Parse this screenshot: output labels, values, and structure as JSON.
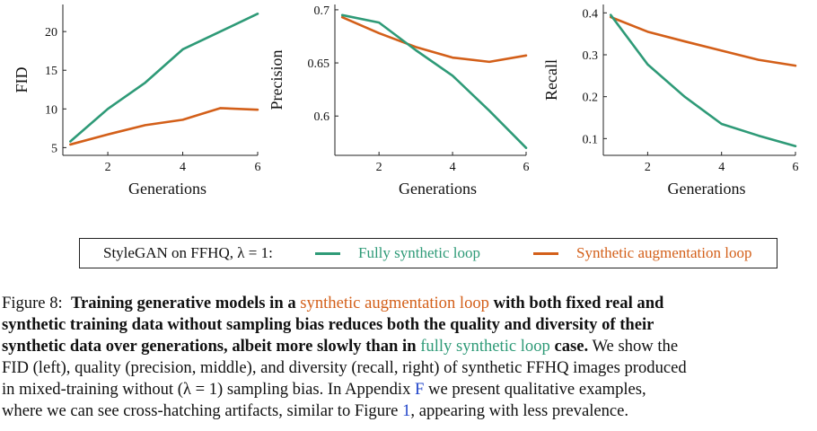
{
  "colors": {
    "fully_synthetic": "#2E9A77",
    "synthetic_augmentation": "#D35F19",
    "ref_link": "#1F43C9"
  },
  "chart_data": [
    {
      "type": "line",
      "xlabel": "Generations",
      "ylabel": "FID",
      "x": [
        1,
        2,
        3,
        4,
        5,
        6
      ],
      "xlim": [
        0.8,
        6
      ],
      "ylim": [
        4,
        23.5
      ],
      "xticks": [
        2,
        4,
        6
      ],
      "yticks": [
        5,
        10,
        15,
        20
      ],
      "xtick_labels": [
        "2",
        "4",
        "6"
      ],
      "ytick_labels": [
        "5",
        "10",
        "15",
        "20"
      ],
      "series": [
        {
          "name": "Fully synthetic loop",
          "color": "#2E9A77",
          "values": [
            5.8,
            10,
            13.4,
            17.7,
            20,
            22.3
          ]
        },
        {
          "name": "Synthetic augmentation loop",
          "color": "#D35F19",
          "values": [
            5.4,
            6.7,
            7.9,
            8.6,
            10.1,
            9.9
          ]
        }
      ]
    },
    {
      "type": "line",
      "xlabel": "Generations",
      "ylabel": "Precision",
      "x": [
        1,
        2,
        3,
        4,
        5,
        6
      ],
      "xlim": [
        0.8,
        6
      ],
      "ylim": [
        0.563,
        0.705
      ],
      "xticks": [
        2,
        4,
        6
      ],
      "yticks": [
        0.6,
        0.65,
        0.7
      ],
      "xtick_labels": [
        "2",
        "4",
        "6"
      ],
      "ytick_labels": [
        "0.6",
        "0.65",
        "0.7"
      ],
      "series": [
        {
          "name": "Fully synthetic loop",
          "color": "#2E9A77",
          "values": [
            0.695,
            0.688,
            0.662,
            0.638,
            0.605,
            0.57
          ]
        },
        {
          "name": "Synthetic augmentation loop",
          "color": "#D35F19",
          "values": [
            0.693,
            0.678,
            0.665,
            0.655,
            0.651,
            0.657
          ]
        }
      ]
    },
    {
      "type": "line",
      "xlabel": "Generations",
      "ylabel": "Recall",
      "x": [
        1,
        2,
        3,
        4,
        5,
        6
      ],
      "xlim": [
        0.8,
        6
      ],
      "ylim": [
        0.06,
        0.42
      ],
      "xticks": [
        2,
        4,
        6
      ],
      "yticks": [
        0.1,
        0.2,
        0.3,
        0.4
      ],
      "xtick_labels": [
        "2",
        "4",
        "6"
      ],
      "ytick_labels": [
        "0.1",
        "0.2",
        "0.3",
        "0.4"
      ],
      "series": [
        {
          "name": "Fully synthetic loop",
          "color": "#2E9A77",
          "values": [
            0.395,
            0.277,
            0.2,
            0.135,
            0.107,
            0.082
          ]
        },
        {
          "name": "Synthetic augmentation loop",
          "color": "#D35F19",
          "values": [
            0.39,
            0.355,
            0.332,
            0.31,
            0.288,
            0.274
          ]
        }
      ]
    }
  ],
  "legend": {
    "title": "StyleGAN on FFHQ, λ = 1:",
    "items": [
      "Fully synthetic loop",
      "Synthetic augmentation loop"
    ]
  },
  "caption": {
    "label": "Figure 8:",
    "bold_1": "Training generative models in a",
    "aug_1": "synthetic augmentation loop",
    "bold_2": "with both fixed real and",
    "bold_3": "synthetic training data without sampling bias reduces both the quality and diversity of their",
    "bold_4": "synthetic data over generations, albeit more slowly than in",
    "full_1": "fully synthetic loop",
    "bold_5": "case.",
    "text_1": "We show the",
    "text_2": "FID (left), quality (precision, middle), and diversity (recall, right) of synthetic FFHQ images produced",
    "text_3": "in mixed-training without (λ = 1) sampling bias. In Appendix",
    "ref_appendix": "F",
    "text_4": "we present qualitative examples,",
    "text_5": "where we can see cross-hatching artifacts, similar to Figure",
    "ref_figure": "1",
    "text_6": ", appearing with less prevalence."
  }
}
